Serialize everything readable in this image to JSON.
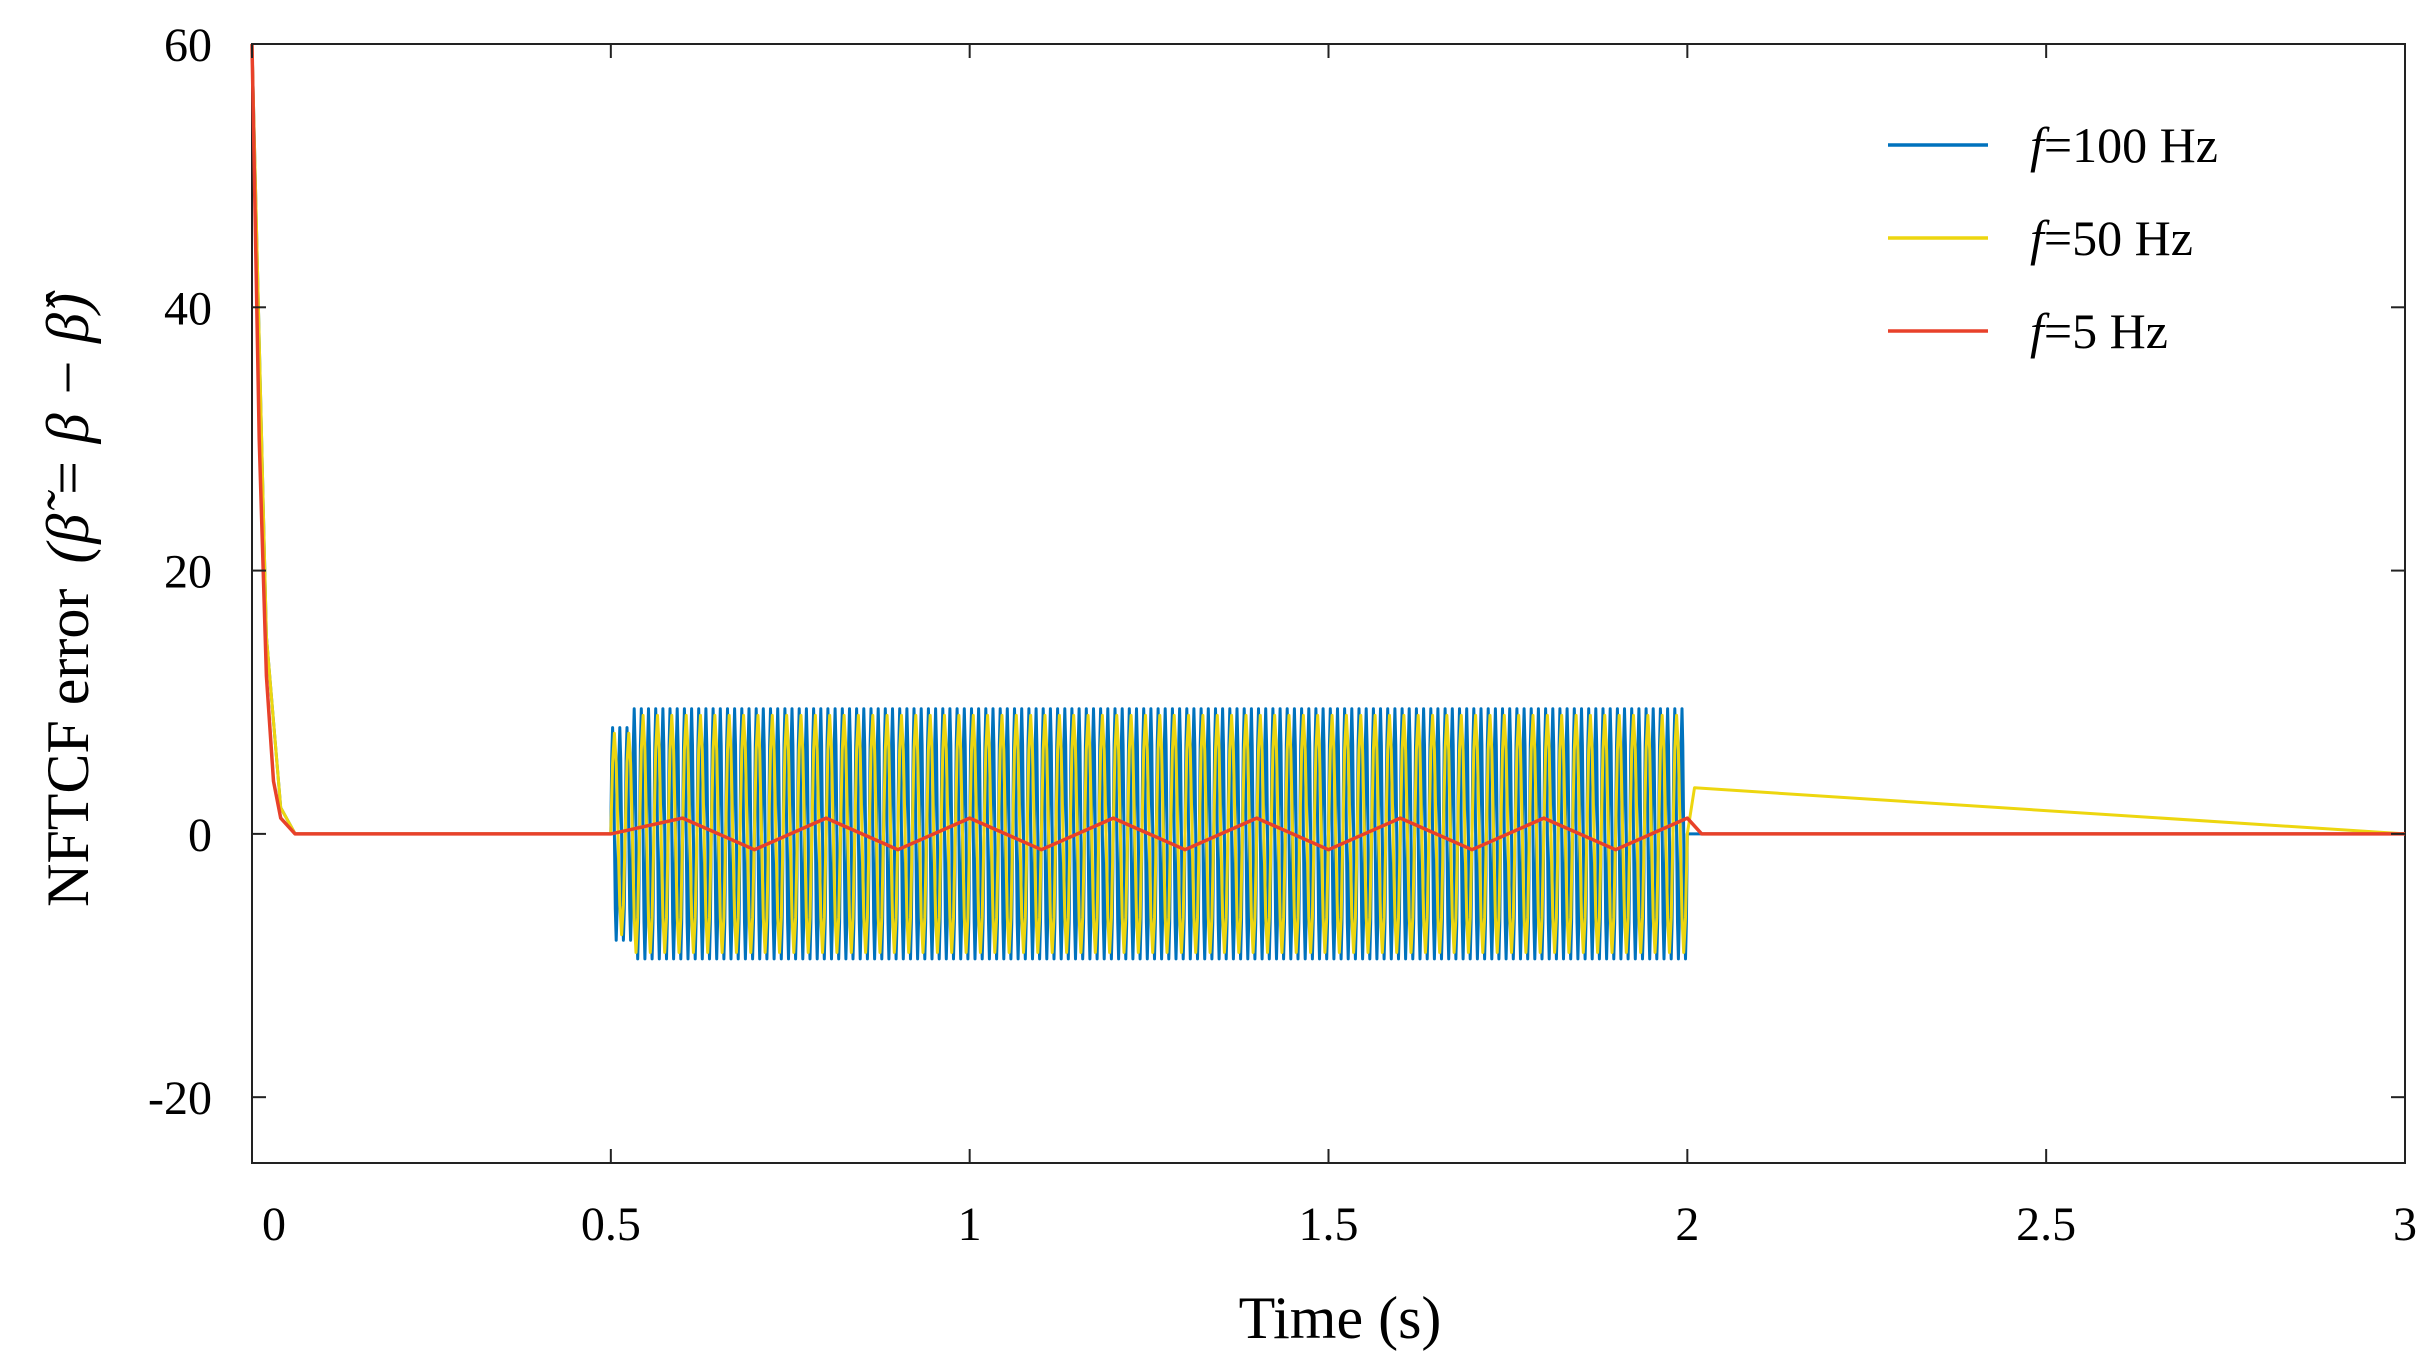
{
  "chart_data": {
    "type": "line",
    "title": "",
    "xlabel": "Time (s)",
    "ylabel": "NFTCF error",
    "ylabel_math": "(β̃ = β − β̂)",
    "xlim": [
      0,
      3
    ],
    "ylim": [
      -25,
      60
    ],
    "xticks": [
      0,
      0.5,
      1,
      1.5,
      2,
      2.5,
      3
    ],
    "xtick_labels": [
      "0",
      "0.5",
      "1",
      "1.5",
      "2",
      "2.5",
      "3"
    ],
    "yticks": [
      -20,
      0,
      20,
      40,
      60
    ],
    "ytick_labels": [
      "-20",
      "0",
      "20",
      "40",
      "60"
    ],
    "grid": false,
    "legend": {
      "position": "top-right"
    },
    "series": [
      {
        "name": "f=100 Hz",
        "legend_f": "f",
        "legend_rest": "=100 Hz",
        "color": "#0072BD",
        "frequency_hz": 100,
        "x": [
          0,
          0.02,
          0.04,
          0.06,
          0.08,
          0.5,
          0.51,
          0.53,
          2.0,
          2.01,
          3.0
        ],
        "y": [
          60,
          15,
          2,
          0,
          0,
          0,
          -10.5,
          9.5,
          9.5,
          0,
          0
        ]
      },
      {
        "name": "f=50 Hz",
        "legend_f": "f",
        "legend_rest": "=50 Hz",
        "color": "#EDD60F",
        "frequency_hz": 50,
        "x": [
          0,
          0.02,
          0.04,
          0.06,
          0.08,
          0.5,
          0.51,
          0.53,
          2.0,
          2.01,
          3.0
        ],
        "y": [
          60,
          15,
          2,
          0,
          0,
          0,
          -9,
          9,
          9,
          3.5,
          0
        ]
      },
      {
        "name": "f=5 Hz",
        "legend_f": "f",
        "legend_rest": "=5 Hz",
        "color": "#E8412A",
        "frequency_hz": 5,
        "x": [
          0,
          0.01,
          0.02,
          0.03,
          0.04,
          0.06,
          0.08,
          0.5,
          0.6,
          0.7,
          0.8,
          0.9,
          1.0,
          1.1,
          1.2,
          1.3,
          1.4,
          1.5,
          1.6,
          1.7,
          1.8,
          1.9,
          2.0,
          2.02,
          3.0
        ],
        "y": [
          60,
          30,
          12,
          4,
          1.2,
          0,
          0,
          0,
          1.2,
          -1.2,
          1.2,
          -1.2,
          1.2,
          -1.2,
          1.2,
          -1.2,
          1.2,
          -1.2,
          1.2,
          -1.2,
          1.2,
          -1.2,
          1.2,
          0,
          0
        ]
      }
    ]
  }
}
